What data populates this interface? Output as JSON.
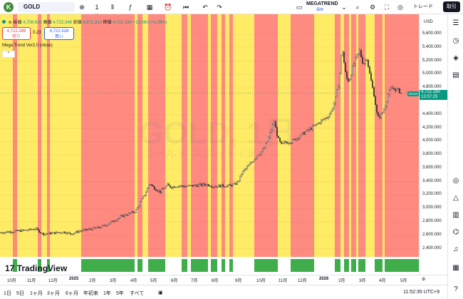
{
  "app": {
    "logo_letter": "K",
    "symbol": "GOLD",
    "timeframe": "1日",
    "order_button": "取引",
    "trade_label": "トレード"
  },
  "indicator_header": {
    "name": "MEGATREND",
    "sub": "保存"
  },
  "ohlc": {
    "open_label": "始値",
    "open": "4,708.620",
    "high_label": "高値",
    "high": "4,722.348",
    "low_label": "安値",
    "low": "4,672.310",
    "close_label": "終値",
    "close": "4,722.180",
    "change": "+13.560 (+0.29%)"
  },
  "sell": {
    "price": "4,722.289",
    "label": "売り"
  },
  "buy": {
    "price": "4,722.528",
    "label": "買い"
  },
  "spread": "0.23",
  "indicator_label": "Mega Trend Ver2.0 (close)",
  "watermark": {
    "title": "GOLD, 1日",
    "sub": "ゴールド スポット / 米ドル"
  },
  "tv_brand": "TradingView",
  "price_axis": {
    "currency": "USD",
    "labels": [
      "5,600.000",
      "5,400.000",
      "5,200.000",
      "5,000.000",
      "4,800.000",
      "4,400.000",
      "4,200.000",
      "4,000.000",
      "3,800.000",
      "3,600.000",
      "3,400.000",
      "3,200.000",
      "3,000.000",
      "2,800.000",
      "2,600.000",
      "2,400.000"
    ],
    "current_price": "4,722.180",
    "countdown": "12:07:25",
    "current_tag": "GOLD"
  },
  "time_axis": [
    "10月",
    "11月",
    "12月",
    "2025",
    "2月",
    "3月",
    "4月",
    "5月",
    "6月",
    "7月",
    "8月",
    "9月",
    "10月",
    "11月",
    "12月",
    "2026",
    "2月",
    "3月",
    "4月",
    "5月"
  ],
  "ranges": [
    "1日",
    "5日",
    "1ヶ月",
    "3ヶ月",
    "6ヶ月",
    "年初来",
    "1年",
    "5年",
    "すべて"
  ],
  "clock": "11:52:35 UTC+9",
  "colors": {
    "bull_zone": "#ff8a80",
    "neutral_zone": "#ffeb66",
    "candle": "#2a2a2a",
    "accent": "#089981"
  },
  "chart_data": {
    "type": "candlestick",
    "ylim": [
      2300,
      5750
    ],
    "price_path": [
      [
        0,
        2640
      ],
      [
        20,
        2660
      ],
      [
        40,
        2680
      ],
      [
        50,
        2700
      ],
      [
        60,
        2620
      ],
      [
        70,
        2630
      ],
      [
        80,
        2640
      ],
      [
        90,
        2650
      ],
      [
        100,
        2620
      ],
      [
        110,
        2660
      ],
      [
        120,
        2680
      ],
      [
        130,
        2700
      ],
      [
        140,
        2720
      ],
      [
        150,
        2760
      ],
      [
        160,
        2820
      ],
      [
        170,
        2880
      ],
      [
        180,
        2920
      ],
      [
        190,
        2960
      ],
      [
        195,
        3050
      ],
      [
        200,
        3150
      ],
      [
        205,
        3250
      ],
      [
        210,
        3380
      ],
      [
        215,
        3320
      ],
      [
        220,
        3280
      ],
      [
        225,
        3250
      ],
      [
        230,
        3300
      ],
      [
        235,
        3350
      ],
      [
        240,
        3320
      ],
      [
        250,
        3340
      ],
      [
        260,
        3330
      ],
      [
        270,
        3340
      ],
      [
        280,
        3350
      ],
      [
        290,
        3360
      ],
      [
        300,
        3330
      ],
      [
        310,
        3340
      ],
      [
        320,
        3340
      ],
      [
        330,
        3360
      ],
      [
        335,
        3420
      ],
      [
        340,
        3540
      ],
      [
        350,
        3650
      ],
      [
        360,
        3780
      ],
      [
        370,
        3880
      ],
      [
        375,
        4000
      ],
      [
        380,
        4150
      ],
      [
        385,
        4300
      ],
      [
        390,
        4050
      ],
      [
        395,
        3950
      ],
      [
        400,
        3990
      ],
      [
        410,
        4000
      ],
      [
        420,
        4080
      ],
      [
        430,
        4150
      ],
      [
        440,
        4220
      ],
      [
        450,
        4300
      ],
      [
        460,
        4370
      ],
      [
        465,
        4450
      ],
      [
        470,
        4600
      ],
      [
        475,
        4850
      ],
      [
        478,
        5100
      ],
      [
        480,
        5450
      ],
      [
        482,
        5250
      ],
      [
        486,
        4950
      ],
      [
        490,
        4900
      ],
      [
        495,
        5100
      ],
      [
        500,
        5250
      ],
      [
        505,
        5350
      ],
      [
        510,
        5150
      ],
      [
        515,
        5250
      ],
      [
        520,
        4950
      ],
      [
        525,
        4700
      ],
      [
        530,
        4350
      ],
      [
        535,
        4400
      ],
      [
        540,
        4500
      ],
      [
        545,
        4700
      ],
      [
        550,
        4800
      ],
      [
        555,
        4780
      ],
      [
        560,
        4760
      ],
      [
        563,
        4722
      ]
    ],
    "zones": [
      {
        "type": "neutral",
        "from": 0,
        "to": 18
      },
      {
        "type": "bull",
        "from": 18,
        "to": 24
      },
      {
        "type": "neutral",
        "from": 24,
        "to": 53
      },
      {
        "type": "bull",
        "from": 53,
        "to": 58
      },
      {
        "type": "neutral",
        "from": 58,
        "to": 66
      },
      {
        "type": "bull",
        "from": 66,
        "to": 70
      },
      {
        "type": "neutral",
        "from": 70,
        "to": 114
      },
      {
        "type": "bull",
        "from": 114,
        "to": 189
      },
      {
        "type": "neutral",
        "from": 189,
        "to": 193
      },
      {
        "type": "bull",
        "from": 193,
        "to": 200
      },
      {
        "type": "neutral",
        "from": 200,
        "to": 208
      },
      {
        "type": "bull",
        "from": 208,
        "to": 232
      },
      {
        "type": "neutral",
        "from": 232,
        "to": 255
      },
      {
        "type": "bull",
        "from": 255,
        "to": 263
      },
      {
        "type": "neutral",
        "from": 263,
        "to": 268
      },
      {
        "type": "bull",
        "from": 268,
        "to": 292
      },
      {
        "type": "neutral",
        "from": 292,
        "to": 296
      },
      {
        "type": "bull",
        "from": 296,
        "to": 305
      },
      {
        "type": "neutral",
        "from": 305,
        "to": 311
      },
      {
        "type": "bull",
        "from": 311,
        "to": 316
      },
      {
        "type": "neutral",
        "from": 316,
        "to": 322
      },
      {
        "type": "bull",
        "from": 322,
        "to": 327
      },
      {
        "type": "neutral",
        "from": 327,
        "to": 357
      },
      {
        "type": "bull",
        "from": 357,
        "to": 390
      },
      {
        "type": "neutral",
        "from": 390,
        "to": 408
      },
      {
        "type": "bull",
        "from": 408,
        "to": 441
      },
      {
        "type": "neutral",
        "from": 441,
        "to": 470
      },
      {
        "type": "bull",
        "from": 470,
        "to": 478
      },
      {
        "type": "neutral",
        "from": 478,
        "to": 483
      },
      {
        "type": "bull",
        "from": 483,
        "to": 490
      },
      {
        "type": "neutral",
        "from": 490,
        "to": 493
      },
      {
        "type": "bull",
        "from": 493,
        "to": 500
      },
      {
        "type": "neutral",
        "from": 500,
        "to": 503
      },
      {
        "type": "bull",
        "from": 503,
        "to": 513
      },
      {
        "type": "neutral",
        "from": 513,
        "to": 526
      },
      {
        "type": "bull",
        "from": 526,
        "to": 537
      },
      {
        "type": "neutral",
        "from": 537,
        "to": 540
      },
      {
        "type": "bull",
        "from": 540,
        "to": 588
      }
    ]
  }
}
